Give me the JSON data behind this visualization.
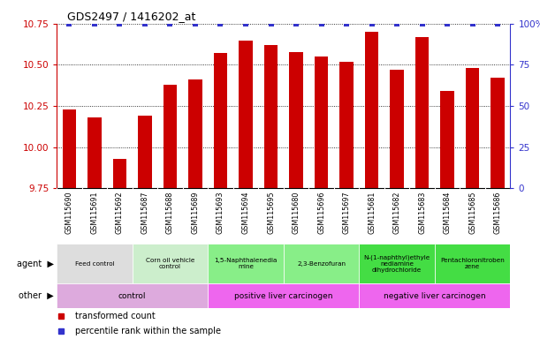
{
  "title": "GDS2497 / 1416202_at",
  "samples": [
    "GSM115690",
    "GSM115691",
    "GSM115692",
    "GSM115687",
    "GSM115688",
    "GSM115689",
    "GSM115693",
    "GSM115694",
    "GSM115695",
    "GSM115680",
    "GSM115696",
    "GSM115697",
    "GSM115681",
    "GSM115682",
    "GSM115683",
    "GSM115684",
    "GSM115685",
    "GSM115686"
  ],
  "bar_values": [
    10.23,
    10.18,
    9.93,
    10.19,
    10.38,
    10.41,
    10.57,
    10.65,
    10.62,
    10.58,
    10.55,
    10.52,
    10.7,
    10.47,
    10.67,
    10.34,
    10.48,
    10.42
  ],
  "percentile_values": [
    100,
    100,
    100,
    100,
    100,
    100,
    100,
    100,
    100,
    100,
    100,
    100,
    100,
    100,
    100,
    100,
    100,
    100
  ],
  "bar_color": "#cc0000",
  "percentile_color": "#3333cc",
  "ylim_left": [
    9.75,
    10.75
  ],
  "ylim_right": [
    0,
    100
  ],
  "yticks_left": [
    9.75,
    10.0,
    10.25,
    10.5,
    10.75
  ],
  "yticks_right": [
    0,
    25,
    50,
    75,
    100
  ],
  "agent_groups": [
    {
      "label": "Feed control",
      "start": 0,
      "end": 3,
      "color": "#dddddd"
    },
    {
      "label": "Corn oil vehicle\ncontrol",
      "start": 3,
      "end": 6,
      "color": "#cceecc"
    },
    {
      "label": "1,5-Naphthalenedia\nmine",
      "start": 6,
      "end": 9,
      "color": "#88ee88"
    },
    {
      "label": "2,3-Benzofuran",
      "start": 9,
      "end": 12,
      "color": "#88ee88"
    },
    {
      "label": "N-(1-naphthyl)ethyle\nnediamine\ndihydrochloride",
      "start": 12,
      "end": 15,
      "color": "#44dd44"
    },
    {
      "label": "Pentachloronitroben\nzene",
      "start": 15,
      "end": 18,
      "color": "#44dd44"
    }
  ],
  "other_groups": [
    {
      "label": "control",
      "start": 0,
      "end": 6,
      "color": "#ddaadd"
    },
    {
      "label": "positive liver carcinogen",
      "start": 6,
      "end": 12,
      "color": "#ee66ee"
    },
    {
      "label": "negative liver carcinogen",
      "start": 12,
      "end": 18,
      "color": "#ee66ee"
    }
  ],
  "legend": [
    {
      "label": "transformed count",
      "color": "#cc0000"
    },
    {
      "label": "percentile rank within the sample",
      "color": "#3333cc"
    }
  ],
  "bg_color": "#ffffff",
  "xtick_bg": "#dddddd"
}
